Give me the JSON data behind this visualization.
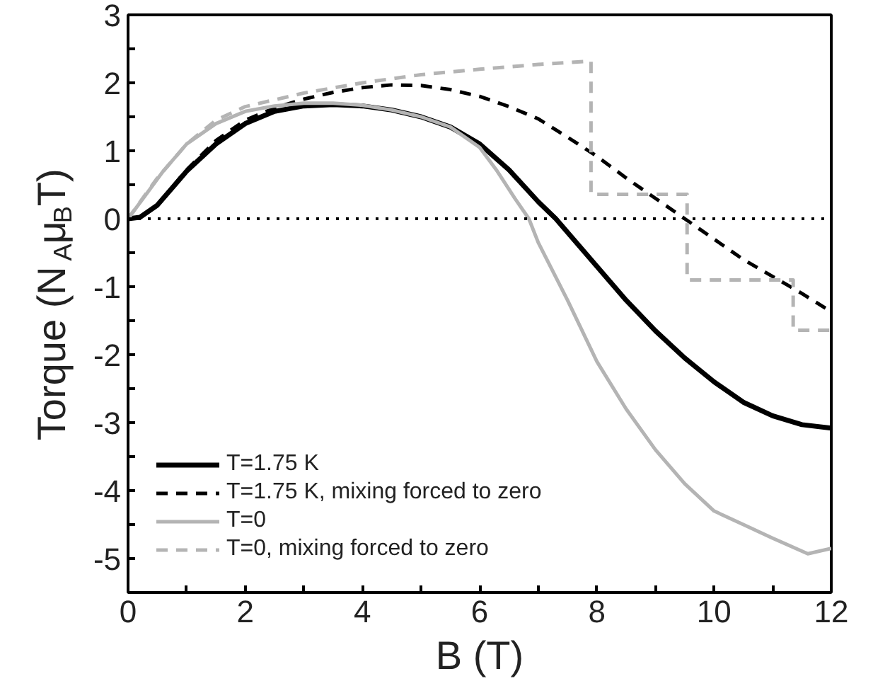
{
  "chart_data": {
    "type": "line",
    "xlabel": "B (T)",
    "ylabel": "Torque (N$_{A}$μ$_{B}$T)",
    "xlim": [
      0,
      12
    ],
    "ylim": [
      -5.5,
      3
    ],
    "xticks": [
      0,
      {
        "value": 1,
        "label": null
      },
      2,
      {
        "value": 3,
        "label": null
      },
      4,
      {
        "value": 5,
        "label": null
      },
      6,
      {
        "value": 7,
        "label": null
      },
      8,
      {
        "value": 9,
        "label": null
      },
      10,
      {
        "value": 11,
        "label": null
      },
      12
    ],
    "yticks": [
      {
        "value": -5.5,
        "label": null
      },
      -5,
      {
        "value": -4.5,
        "label": null
      },
      -4,
      {
        "value": -3.5,
        "label": null
      },
      -3,
      {
        "value": -2.5,
        "label": null
      },
      -2,
      {
        "value": -1.5,
        "label": null
      },
      -1,
      {
        "value": -0.5,
        "label": null
      },
      0,
      {
        "value": 0.5,
        "label": null
      },
      1,
      {
        "value": 1.5,
        "label": null
      },
      2,
      {
        "value": 2.5,
        "label": null
      },
      3
    ],
    "grid": false,
    "legend": "bottom left",
    "ref_lines": [
      {
        "axis": "y",
        "value": 0,
        "label": null,
        "color": "#000000",
        "line_style": "dotted"
      }
    ],
    "series": [
      {
        "name": "T=1.75 K",
        "color": "#000000",
        "line_style": "solid",
        "x": [
          0,
          0.2,
          0.5,
          1,
          1.5,
          2,
          2.5,
          3,
          3.5,
          4,
          4.5,
          5,
          5.5,
          6,
          6.5,
          7,
          7.3,
          7.5,
          8,
          8.5,
          9,
          9.5,
          10,
          10.5,
          11,
          11.5,
          12
        ],
        "values": [
          0,
          0.02,
          0.2,
          0.7,
          1.1,
          1.4,
          1.58,
          1.66,
          1.68,
          1.66,
          1.6,
          1.5,
          1.35,
          1.1,
          0.72,
          0.25,
          0,
          -0.2,
          -0.7,
          -1.2,
          -1.65,
          -2.05,
          -2.4,
          -2.7,
          -2.9,
          -3.03,
          -3.08
        ]
      },
      {
        "name": "T=1.75 K, mixing forced to zero",
        "color": "#000000",
        "line_style": "dashed",
        "x": [
          0,
          0.2,
          0.5,
          1,
          1.5,
          2,
          2.5,
          3,
          3.5,
          4,
          4.5,
          5,
          5.5,
          6,
          6.5,
          7,
          7.5,
          8,
          8.5,
          9,
          9.5,
          10,
          10.5,
          11,
          11.5,
          12
        ],
        "values": [
          0,
          0.02,
          0.2,
          0.72,
          1.15,
          1.45,
          1.63,
          1.76,
          1.86,
          1.93,
          1.97,
          1.96,
          1.9,
          1.8,
          1.65,
          1.47,
          1.2,
          0.92,
          0.6,
          0.3,
          0,
          -0.3,
          -0.6,
          -0.85,
          -1.1,
          -1.37
        ]
      },
      {
        "name": "T=0",
        "color": "#b4b4b4",
        "line_style": "solid",
        "x": [
          0,
          0.3,
          0.6,
          1,
          1.5,
          2,
          2.5,
          3,
          3.5,
          4,
          4.5,
          5,
          5.5,
          6,
          6.3,
          6.6,
          6.84,
          7,
          7.5,
          8,
          8.5,
          9,
          9.5,
          10,
          10.5,
          11,
          11.6,
          12
        ],
        "values": [
          0,
          0.35,
          0.7,
          1.1,
          1.4,
          1.58,
          1.66,
          1.7,
          1.7,
          1.67,
          1.6,
          1.5,
          1.35,
          1.05,
          0.7,
          0.3,
          0,
          -0.35,
          -1.2,
          -2.1,
          -2.8,
          -3.4,
          -3.9,
          -4.3,
          -4.5,
          -4.7,
          -4.93,
          -4.85
        ]
      },
      {
        "name": "T=0, mixing forced to zero",
        "color": "#b4b4b4",
        "line_style": "dashed",
        "x": [
          0,
          0.5,
          1,
          1.5,
          2,
          3,
          4,
          5,
          6,
          7,
          7.9,
          7.9,
          9.54,
          9.54,
          11.35,
          11.35,
          12
        ],
        "values": [
          0,
          0.6,
          1.1,
          1.45,
          1.65,
          1.85,
          2.0,
          2.12,
          2.2,
          2.27,
          2.32,
          0.36,
          0.36,
          -0.9,
          -0.9,
          -1.64,
          -1.64
        ]
      }
    ]
  }
}
